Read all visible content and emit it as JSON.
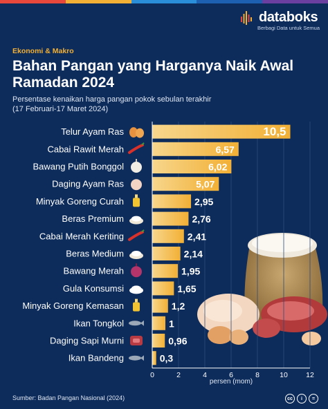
{
  "header": {
    "category": "Ekonomi & Makro",
    "title": "Bahan Pangan yang Harganya Naik Awal Ramadan 2024",
    "subtitle_line1": "Persentase kenaikan harga pangan pokok sebulan terakhir",
    "subtitle_line2": "(17 Februari-17 Maret 2024)"
  },
  "brand": {
    "name": "databoks",
    "tagline": "Berbagi Data untuk Semua"
  },
  "footer": {
    "source": "Sumber: Badan Pangan Nasional (2024)"
  },
  "colors": {
    "background": "#0d2c5b",
    "bar_top": "#f2b035",
    "bar_light": "#f7d68c",
    "accent": "#f2b035"
  },
  "chart_data": {
    "type": "bar",
    "orientation": "horizontal",
    "categories": [
      "Telur Ayam Ras",
      "Cabai Rawit Merah",
      "Bawang Putih Bonggol",
      "Daging Ayam Ras",
      "Minyak Goreng Curah",
      "Beras Premium",
      "Cabai Merah Keriting",
      "Beras Medium",
      "Bawang Merah",
      "Gula Konsumsi",
      "Minyak Goreng Kemasan",
      "Ikan Tongkol",
      "Daging Sapi Murni",
      "Ikan Bandeng"
    ],
    "values": [
      10.5,
      6.57,
      6.02,
      5.07,
      2.95,
      2.76,
      2.41,
      2.14,
      1.95,
      1.65,
      1.2,
      1,
      0.96,
      0.3
    ],
    "value_labels": [
      "10,5",
      "6,57",
      "6,02",
      "5,07",
      "2,95",
      "2,76",
      "2,41",
      "2,14",
      "1,95",
      "1,65",
      "1,2",
      "1",
      "0,96",
      "0,3"
    ],
    "icons": [
      "eggs-icon",
      "chili-icon",
      "garlic-icon",
      "chicken-icon",
      "oil-bottle-icon",
      "rice-icon",
      "chili-icon",
      "rice-icon",
      "shallot-icon",
      "sugar-icon",
      "oil-bottle-icon",
      "fish-icon",
      "beef-icon",
      "fish-icon"
    ],
    "xlim": [
      0,
      12
    ],
    "x_ticks": [
      0,
      2,
      4,
      6,
      8,
      10,
      12
    ],
    "xlabel": "persen (mom)",
    "ylabel": ""
  }
}
